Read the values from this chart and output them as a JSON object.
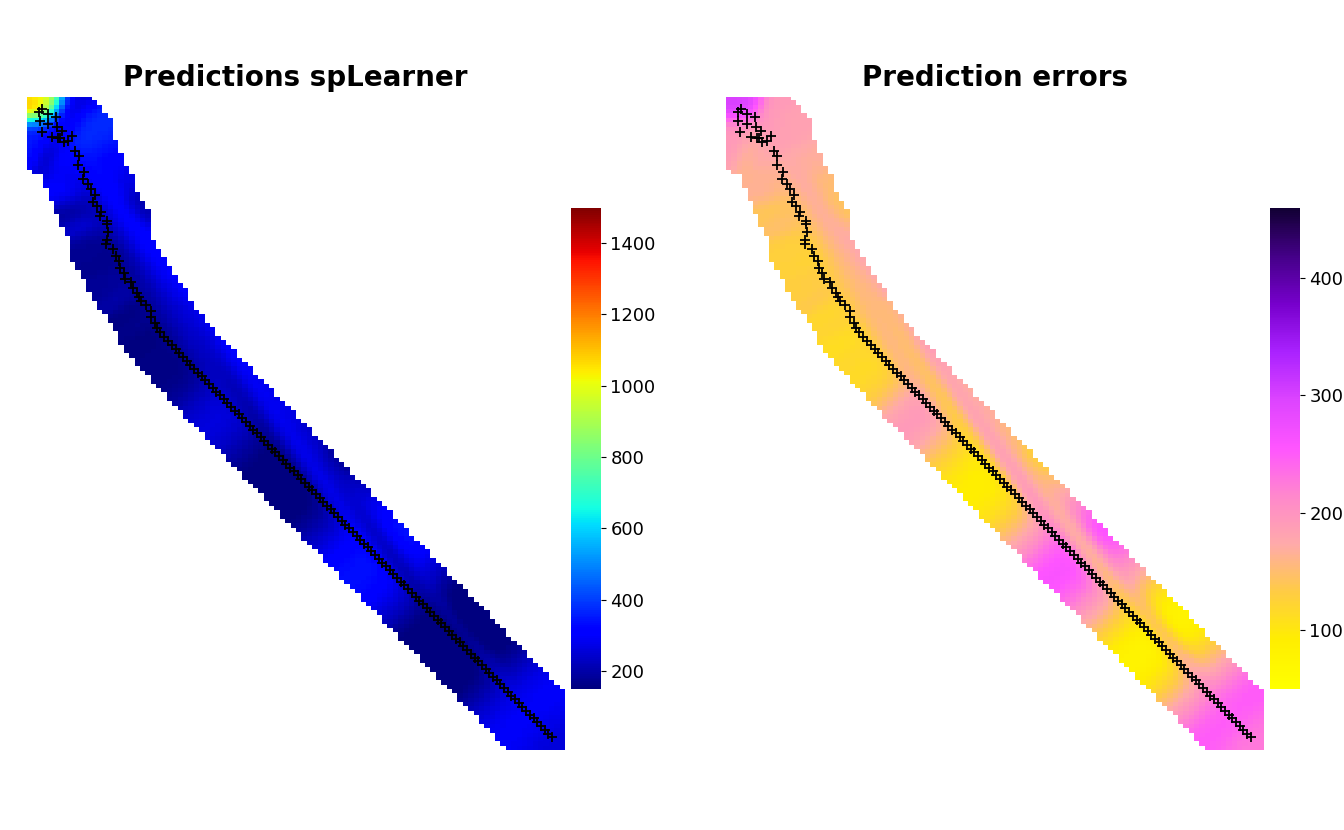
{
  "title_left": "Predictions spLearner",
  "title_right": "Prediction errors",
  "title_fontsize": 20,
  "title_fontweight": "bold",
  "cbar1_ticks": [
    200,
    400,
    600,
    800,
    1000,
    1200,
    1400
  ],
  "cbar2_ticks": [
    100,
    200,
    300,
    400
  ],
  "background_color": "#ffffff",
  "marker_color": "black",
  "marker_size": 7,
  "marker_lw": 1.3,
  "vmin1": 150,
  "vmax1": 1500,
  "vmin2": 50,
  "vmax2": 460
}
